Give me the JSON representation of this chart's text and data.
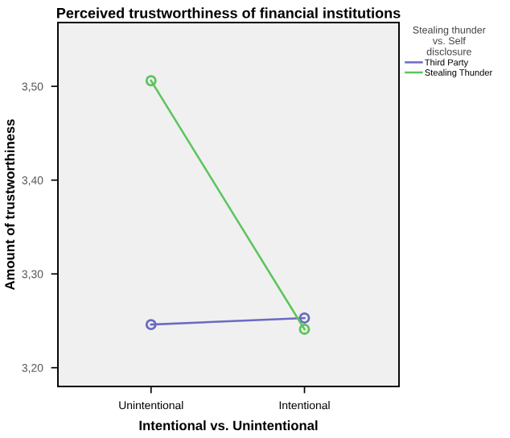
{
  "chart_data": {
    "type": "line",
    "title": "Perceived trustworthiness of financial institutions",
    "xlabel": "Intentional vs. Unintentional",
    "ylabel": "Amount of trustworthiness",
    "legend_title": "Stealing thunder\nvs. Self\ndisclosure",
    "categories": [
      "Unintentional",
      "Intentional"
    ],
    "series": [
      {
        "name": "Third Party",
        "color": "#6a6ac4",
        "values": [
          3.246,
          3.253
        ]
      },
      {
        "name": "Stealing Thunder",
        "color": "#5cc45c",
        "values": [
          3.506,
          3.241
        ]
      }
    ],
    "ylim": [
      3.18,
      3.568
    ],
    "yticks": [
      {
        "value": 3.2,
        "label": "3,20"
      },
      {
        "value": 3.3,
        "label": "3,30"
      },
      {
        "value": 3.4,
        "label": "3,40"
      },
      {
        "value": 3.5,
        "label": "3,50"
      }
    ],
    "marker": "circle",
    "line_style": "solid",
    "grid": false,
    "legend": "top right"
  }
}
